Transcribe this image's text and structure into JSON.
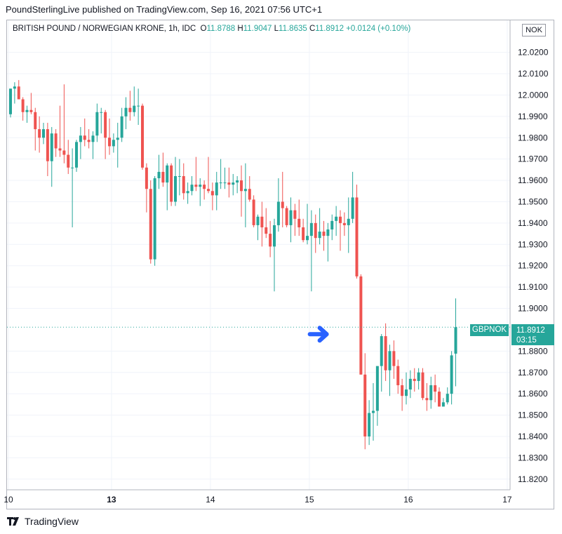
{
  "header": {
    "published_text": "PoundSterlingLive published on TradingView.com, Sep 16, 2021 07:56 UTC+1"
  },
  "legend": {
    "title": "BRITISH POUND / NORWEGIAN KRONE, 1h, IDC",
    "o_label": "O",
    "o_value": "11.8788",
    "h_label": "H",
    "h_value": "11.9047",
    "l_label": "L",
    "l_value": "11.8635",
    "c_label": "C",
    "c_value": "11.8912",
    "change": "+0.0124 (+0.10%)"
  },
  "currency": "NOK",
  "last_price": {
    "symbol": "GBPNOK",
    "price": "11.8912",
    "countdown": "03:15"
  },
  "footer": {
    "brand": "TradingView"
  },
  "colors": {
    "up": "#26a69a",
    "down": "#ef5350",
    "grid": "#f0f3fa",
    "arrow": "#2962ff"
  },
  "chart_data": {
    "type": "candlestick",
    "ylim": [
      11.815,
      12.035
    ],
    "y_ticks": [
      "12.0200",
      "12.0100",
      "12.0000",
      "11.9900",
      "11.9800",
      "11.9700",
      "11.9600",
      "11.9500",
      "11.9400",
      "11.9300",
      "11.9200",
      "11.9100",
      "11.9000",
      "11.8800",
      "11.8700",
      "11.8600",
      "11.8500",
      "11.8400",
      "11.8300",
      "11.8200"
    ],
    "x_ticks": [
      {
        "label": "10",
        "bar": -0.5
      },
      {
        "label": "13",
        "bar": 24.5
      },
      {
        "label": "14",
        "bar": 48.5
      },
      {
        "label": "15",
        "bar": 72.5
      },
      {
        "label": "16",
        "bar": 96.5
      },
      {
        "label": "17",
        "bar": 120.5
      }
    ],
    "annotation": {
      "type": "arrow",
      "bar": 75,
      "price": 11.8912
    },
    "candles": [
      [
        11.991,
        12.003,
        11.9895,
        12.003
      ],
      [
        12.003,
        12.006,
        11.996,
        12.004
      ],
      [
        12.004,
        12.007,
        11.998,
        11.998
      ],
      [
        11.998,
        11.999,
        11.988,
        11.992
      ],
      [
        11.992,
        11.995,
        11.987,
        11.993
      ],
      [
        11.993,
        12.001,
        11.991,
        11.992
      ],
      [
        11.992,
        11.994,
        11.974,
        11.984
      ],
      [
        11.984,
        11.99,
        11.973,
        11.98
      ],
      [
        11.98,
        11.987,
        11.977,
        11.984
      ],
      [
        11.984,
        11.987,
        11.962,
        11.969
      ],
      [
        11.969,
        11.985,
        11.957,
        11.982
      ],
      [
        11.982,
        11.984,
        11.971,
        11.975
      ],
      [
        11.975,
        11.995,
        11.971,
        11.974
      ],
      [
        11.974,
        12.005,
        11.968,
        11.972
      ],
      [
        11.972,
        11.979,
        11.963,
        11.966
      ],
      [
        11.966,
        11.975,
        11.938,
        11.966
      ],
      [
        11.966,
        11.979,
        11.964,
        11.978
      ],
      [
        11.978,
        11.985,
        11.97,
        11.981
      ],
      [
        11.981,
        11.989,
        11.976,
        11.979
      ],
      [
        11.979,
        11.984,
        11.975,
        11.978
      ],
      [
        11.978,
        11.983,
        11.97,
        11.981
      ],
      [
        11.981,
        11.996,
        11.978,
        11.992
      ],
      [
        11.992,
        11.994,
        11.982,
        11.992
      ],
      [
        11.992,
        11.993,
        11.97,
        11.98
      ],
      [
        11.98,
        11.989,
        11.972,
        11.976
      ],
      [
        11.976,
        11.982,
        11.973,
        11.979
      ],
      [
        11.979,
        11.987,
        11.966,
        11.98
      ],
      [
        11.98,
        11.994,
        11.978,
        11.99
      ],
      [
        11.99,
        11.999,
        11.984,
        11.994
      ],
      [
        11.994,
        12.002,
        11.988,
        11.992
      ],
      [
        11.992,
        12.004,
        11.99,
        11.995
      ],
      [
        11.995,
        12.003,
        11.986,
        11.995
      ],
      [
        11.995,
        11.996,
        11.965,
        11.966
      ],
      [
        11.966,
        11.968,
        11.945,
        11.956
      ],
      [
        11.956,
        11.96,
        11.921,
        11.923
      ],
      [
        11.923,
        11.962,
        11.92,
        11.961
      ],
      [
        11.961,
        11.972,
        11.956,
        11.964
      ],
      [
        11.964,
        11.973,
        11.957,
        11.959
      ],
      [
        11.959,
        11.968,
        11.946,
        11.967
      ],
      [
        11.967,
        11.968,
        11.948,
        11.95
      ],
      [
        11.95,
        11.971,
        11.948,
        11.962
      ],
      [
        11.962,
        11.97,
        11.953,
        11.962
      ],
      [
        11.962,
        11.968,
        11.951,
        11.954
      ],
      [
        11.954,
        11.959,
        11.949,
        11.955
      ],
      [
        11.955,
        11.962,
        11.953,
        11.958
      ],
      [
        11.958,
        11.971,
        11.955,
        11.957
      ],
      [
        11.957,
        11.961,
        11.948,
        11.958
      ],
      [
        11.958,
        11.96,
        11.951,
        11.956
      ],
      [
        11.956,
        11.971,
        11.954,
        11.955
      ],
      [
        11.955,
        11.959,
        11.946,
        11.953
      ],
      [
        11.953,
        11.964,
        11.946,
        11.959
      ],
      [
        11.959,
        11.97,
        11.956,
        11.959
      ],
      [
        11.959,
        11.966,
        11.956,
        11.959
      ],
      [
        11.959,
        11.966,
        11.952,
        11.958
      ],
      [
        11.958,
        11.963,
        11.953,
        11.959
      ],
      [
        11.959,
        11.962,
        11.954,
        11.96
      ],
      [
        11.96,
        11.967,
        11.943,
        11.955
      ],
      [
        11.955,
        11.968,
        11.938,
        11.956
      ],
      [
        11.956,
        11.962,
        11.95,
        11.951
      ],
      [
        11.951,
        11.953,
        11.938,
        11.939
      ],
      [
        11.939,
        11.944,
        11.932,
        11.943
      ],
      [
        11.943,
        11.95,
        11.929,
        11.938
      ],
      [
        11.938,
        11.947,
        11.933,
        11.935
      ],
      [
        11.935,
        11.941,
        11.924,
        11.929
      ],
      [
        11.929,
        11.942,
        11.908,
        11.939
      ],
      [
        11.939,
        11.961,
        11.936,
        11.95
      ],
      [
        11.95,
        11.964,
        11.938,
        11.947
      ],
      [
        11.947,
        11.948,
        11.938,
        11.939
      ],
      [
        11.939,
        11.952,
        11.931,
        11.946
      ],
      [
        11.946,
        11.949,
        11.934,
        11.942
      ],
      [
        11.942,
        11.951,
        11.934,
        11.938
      ],
      [
        11.938,
        11.942,
        11.931,
        11.932
      ],
      [
        11.932,
        11.949,
        11.93,
        11.934
      ],
      [
        11.934,
        11.946,
        11.908,
        11.94
      ],
      [
        11.94,
        11.944,
        11.926,
        11.933
      ],
      [
        11.933,
        11.947,
        11.93,
        11.936
      ],
      [
        11.936,
        11.941,
        11.927,
        11.934
      ],
      [
        11.934,
        11.94,
        11.922,
        11.937
      ],
      [
        11.937,
        11.944,
        11.932,
        11.941
      ],
      [
        11.941,
        11.948,
        11.934,
        11.943
      ],
      [
        11.943,
        11.946,
        11.927,
        11.94
      ],
      [
        11.94,
        11.945,
        11.934,
        11.939
      ],
      [
        11.939,
        11.952,
        11.926,
        11.942
      ],
      [
        11.942,
        11.964,
        11.94,
        11.952
      ],
      [
        11.952,
        11.958,
        11.914,
        11.915
      ],
      [
        11.915,
        11.916,
        11.869,
        11.869
      ],
      [
        11.869,
        11.879,
        11.834,
        11.84
      ],
      [
        11.84,
        11.857,
        11.836,
        11.851
      ],
      [
        11.851,
        11.865,
        11.838,
        11.852
      ],
      [
        11.852,
        11.872,
        11.845,
        11.873
      ],
      [
        11.873,
        11.888,
        11.861,
        11.887
      ],
      [
        11.887,
        11.893,
        11.866,
        11.871
      ],
      [
        11.871,
        11.883,
        11.859,
        11.88
      ],
      [
        11.88,
        11.885,
        11.867,
        11.873
      ],
      [
        11.873,
        11.876,
        11.86,
        11.864
      ],
      [
        11.864,
        11.867,
        11.852,
        11.859
      ],
      [
        11.859,
        11.87,
        11.855,
        11.862
      ],
      [
        11.862,
        11.871,
        11.858,
        11.867
      ],
      [
        11.867,
        11.872,
        11.861,
        11.866
      ],
      [
        11.866,
        11.872,
        11.862,
        11.87
      ],
      [
        11.87,
        11.872,
        11.857,
        11.858
      ],
      [
        11.858,
        11.865,
        11.852,
        11.857
      ],
      [
        11.857,
        11.868,
        11.853,
        11.864
      ],
      [
        11.864,
        11.869,
        11.856,
        11.861
      ],
      [
        11.861,
        11.863,
        11.854,
        11.854
      ],
      [
        11.854,
        11.858,
        11.854,
        11.856
      ],
      [
        11.856,
        11.863,
        11.855,
        11.86
      ],
      [
        11.86,
        11.88,
        11.855,
        11.878
      ],
      [
        11.8788,
        11.9047,
        11.8635,
        11.8912
      ]
    ]
  }
}
